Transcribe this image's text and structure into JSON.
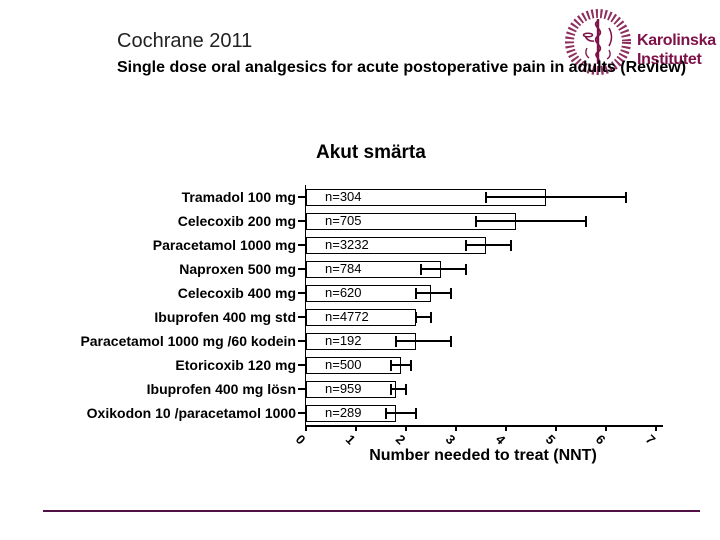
{
  "slide": {
    "title": "Cochrane 2011",
    "subtitle": "Single dose oral analgesics for acute postoperative pain in adults (Review)"
  },
  "logo": {
    "seal_icon": "karolinska-institutet-seal",
    "line1": "Karolinska",
    "line2": "Institutet",
    "brand_color": "#7d1148"
  },
  "chart_data": {
    "type": "bar",
    "orientation": "horizontal",
    "title": "Akut smärta",
    "xlabel": "Number needed to treat (NNT)",
    "xlim": [
      0,
      7
    ],
    "x_ticks": [
      0,
      1,
      2,
      3,
      4,
      5,
      6,
      7
    ],
    "grid": false,
    "legend": "none",
    "bar_fill": "#ffffff",
    "bar_stroke": "#000000",
    "axis_color": "#000000",
    "rows": [
      {
        "label": "Tramadol 100 mg",
        "n_label": "n=304",
        "nnt": 4.8,
        "ci_low": 3.6,
        "ci_high": 6.4
      },
      {
        "label": "Celecoxib 200 mg",
        "n_label": "n=705",
        "nnt": 4.2,
        "ci_low": 3.4,
        "ci_high": 5.6
      },
      {
        "label": "Paracetamol 1000 mg",
        "n_label": "n=3232",
        "nnt": 3.6,
        "ci_low": 3.2,
        "ci_high": 4.1
      },
      {
        "label": "Naproxen 500 mg",
        "n_label": "n=784",
        "nnt": 2.7,
        "ci_low": 2.3,
        "ci_high": 3.2
      },
      {
        "label": "Celecoxib 400 mg",
        "n_label": "n=620",
        "nnt": 2.5,
        "ci_low": 2.2,
        "ci_high": 2.9
      },
      {
        "label": "Ibuprofen 400 mg std",
        "n_label": "n=4772",
        "nnt": 2.2,
        "ci_low": 2.2,
        "ci_high": 2.5
      },
      {
        "label": "Paracetamol 1000 mg /60 kodein",
        "n_label": "n=192",
        "nnt": 2.2,
        "ci_low": 1.8,
        "ci_high": 2.9
      },
      {
        "label": "Etoricoxib 120 mg",
        "n_label": "n=500",
        "nnt": 1.9,
        "ci_low": 1.7,
        "ci_high": 2.1
      },
      {
        "label": "Ibuprofen 400 mg lösn",
        "n_label": "n=959",
        "nnt": 1.8,
        "ci_low": 1.7,
        "ci_high": 2.0
      },
      {
        "label": "Oxikodon 10 /paracetamol 1000",
        "n_label": "n=289",
        "nnt": 1.8,
        "ci_low": 1.6,
        "ci_high": 2.2
      }
    ]
  },
  "footer": {
    "divider_color": "#521144"
  }
}
